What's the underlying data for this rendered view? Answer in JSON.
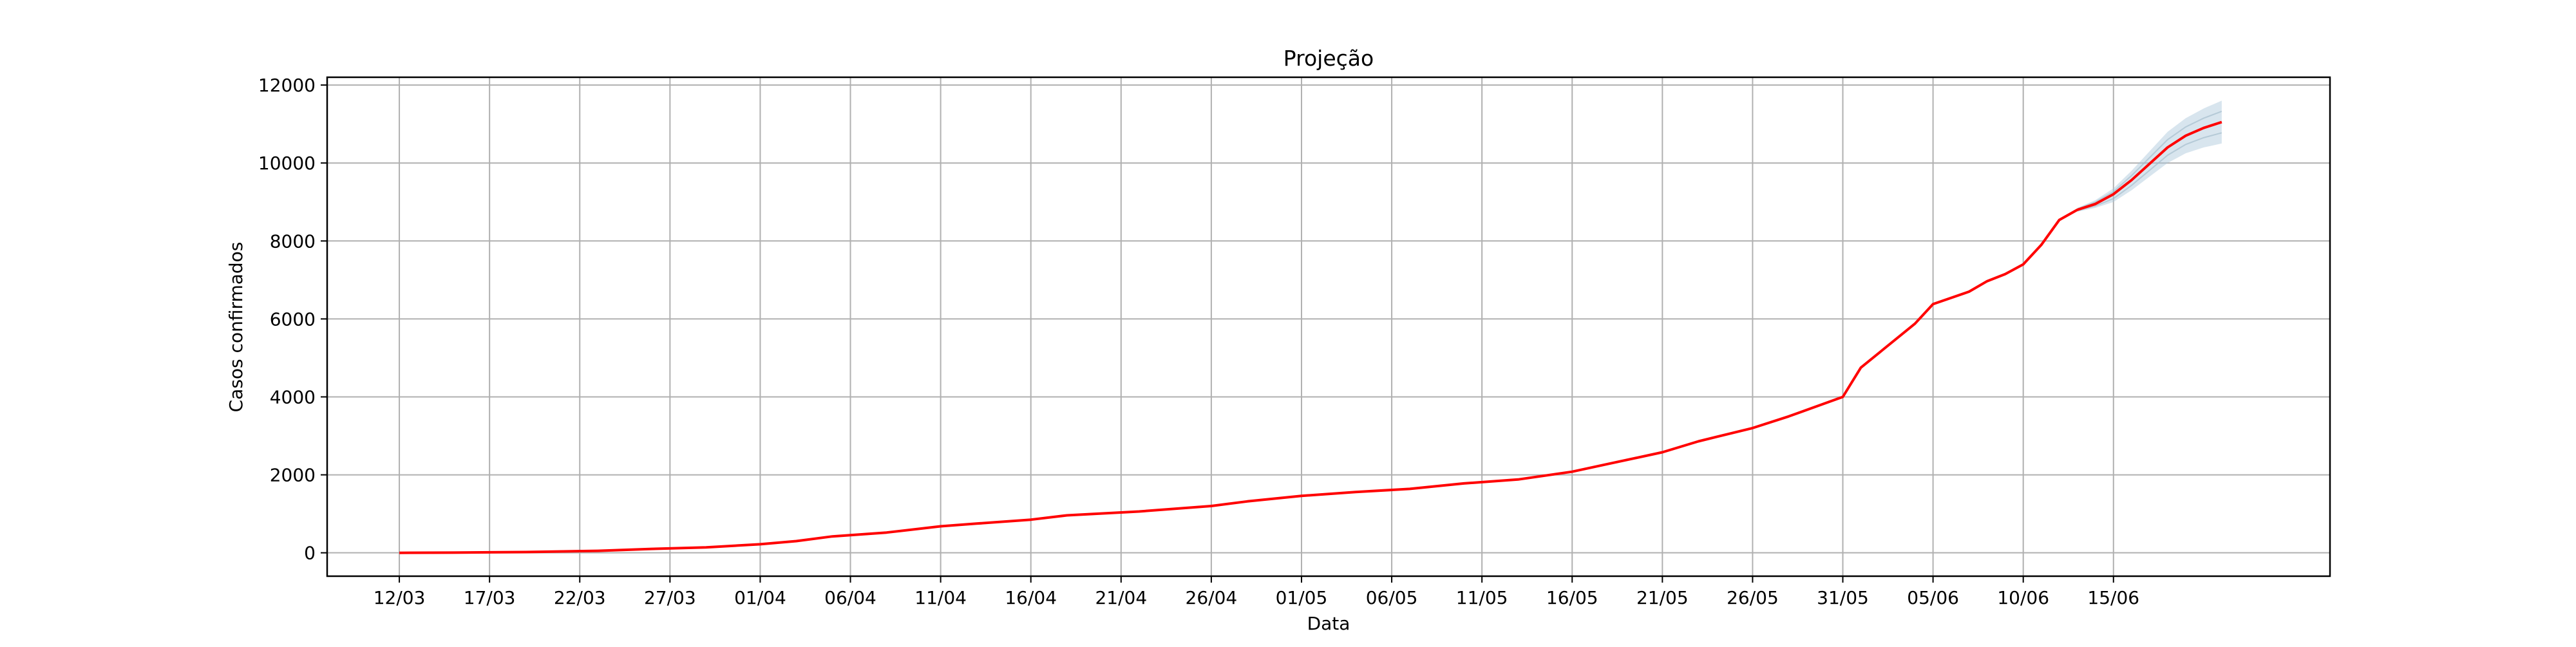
{
  "chart_data": {
    "type": "line",
    "title": "Projeção",
    "xlabel": "Data",
    "ylabel": "Casos confirmados",
    "x_start": "2020-03-12",
    "x_end": "2020-06-21",
    "xlim": [
      "2020-03-08",
      "2020-06-27"
    ],
    "ylim": [
      -600,
      12200
    ],
    "grid": true,
    "x_ticks": [
      {
        "date": "2020-03-12",
        "label": "12/03"
      },
      {
        "date": "2020-03-17",
        "label": "17/03"
      },
      {
        "date": "2020-03-22",
        "label": "22/03"
      },
      {
        "date": "2020-03-27",
        "label": "27/03"
      },
      {
        "date": "2020-04-01",
        "label": "01/04"
      },
      {
        "date": "2020-04-06",
        "label": "06/04"
      },
      {
        "date": "2020-04-11",
        "label": "11/04"
      },
      {
        "date": "2020-04-16",
        "label": "16/04"
      },
      {
        "date": "2020-04-21",
        "label": "21/04"
      },
      {
        "date": "2020-04-26",
        "label": "26/04"
      },
      {
        "date": "2020-05-01",
        "label": "01/05"
      },
      {
        "date": "2020-05-06",
        "label": "06/05"
      },
      {
        "date": "2020-05-11",
        "label": "11/05"
      },
      {
        "date": "2020-05-16",
        "label": "16/05"
      },
      {
        "date": "2020-05-21",
        "label": "21/05"
      },
      {
        "date": "2020-05-26",
        "label": "26/05"
      },
      {
        "date": "2020-05-31",
        "label": "31/05"
      },
      {
        "date": "2020-06-05",
        "label": "05/06"
      },
      {
        "date": "2020-06-10",
        "label": "10/06"
      },
      {
        "date": "2020-06-15",
        "label": "15/06"
      }
    ],
    "y_ticks": [
      {
        "value": 0,
        "label": "0"
      },
      {
        "value": 2000,
        "label": "2000"
      },
      {
        "value": 4000,
        "label": "4000"
      },
      {
        "value": 6000,
        "label": "6000"
      },
      {
        "value": 8000,
        "label": "8000"
      },
      {
        "value": 10000,
        "label": "10000"
      },
      {
        "value": 12000,
        "label": "12000"
      }
    ],
    "series": [
      {
        "color": "#ff0000",
        "x": [
          "2020-03-12",
          "2020-03-15",
          "2020-03-19",
          "2020-03-23",
          "2020-03-26",
          "2020-03-29",
          "2020-04-01",
          "2020-04-03",
          "2020-04-05",
          "2020-04-08",
          "2020-04-11",
          "2020-04-13",
          "2020-04-16",
          "2020-04-18",
          "2020-04-22",
          "2020-04-26",
          "2020-04-28",
          "2020-05-01",
          "2020-05-04",
          "2020-05-07",
          "2020-05-10",
          "2020-05-13",
          "2020-05-16",
          "2020-05-18",
          "2020-05-21",
          "2020-05-23",
          "2020-05-26",
          "2020-05-28",
          "2020-05-31",
          "2020-06-01",
          "2020-06-04",
          "2020-06-05",
          "2020-06-07",
          "2020-06-08",
          "2020-06-09",
          "2020-06-10",
          "2020-06-11",
          "2020-06-12",
          "2020-06-13",
          "2020-06-14",
          "2020-06-15",
          "2020-06-16",
          "2020-06-17",
          "2020-06-18",
          "2020-06-19",
          "2020-06-20",
          "2020-06-21"
        ],
        "y": [
          0,
          5,
          20,
          50,
          100,
          140,
          220,
          300,
          420,
          520,
          680,
          750,
          850,
          960,
          1060,
          1200,
          1320,
          1460,
          1560,
          1640,
          1780,
          1880,
          2080,
          2280,
          2580,
          2860,
          3200,
          3500,
          4000,
          4750,
          5880,
          6380,
          6700,
          6970,
          7150,
          7400,
          7900,
          8540,
          8800,
          8950,
          9200,
          9560,
          9980,
          10400,
          10700,
          10900,
          11050
        ]
      }
    ],
    "confidence_band": {
      "color": "#a8c6da",
      "x": [
        "2020-06-13",
        "2020-06-14",
        "2020-06-15",
        "2020-06-16",
        "2020-06-17",
        "2020-06-18",
        "2020-06-19",
        "2020-06-20",
        "2020-06-21"
      ],
      "lower": [
        8750,
        8850,
        9000,
        9300,
        9650,
        10000,
        10250,
        10400,
        10500
      ],
      "upper": [
        8850,
        9050,
        9350,
        9800,
        10300,
        10800,
        11150,
        11400,
        11600
      ]
    }
  }
}
